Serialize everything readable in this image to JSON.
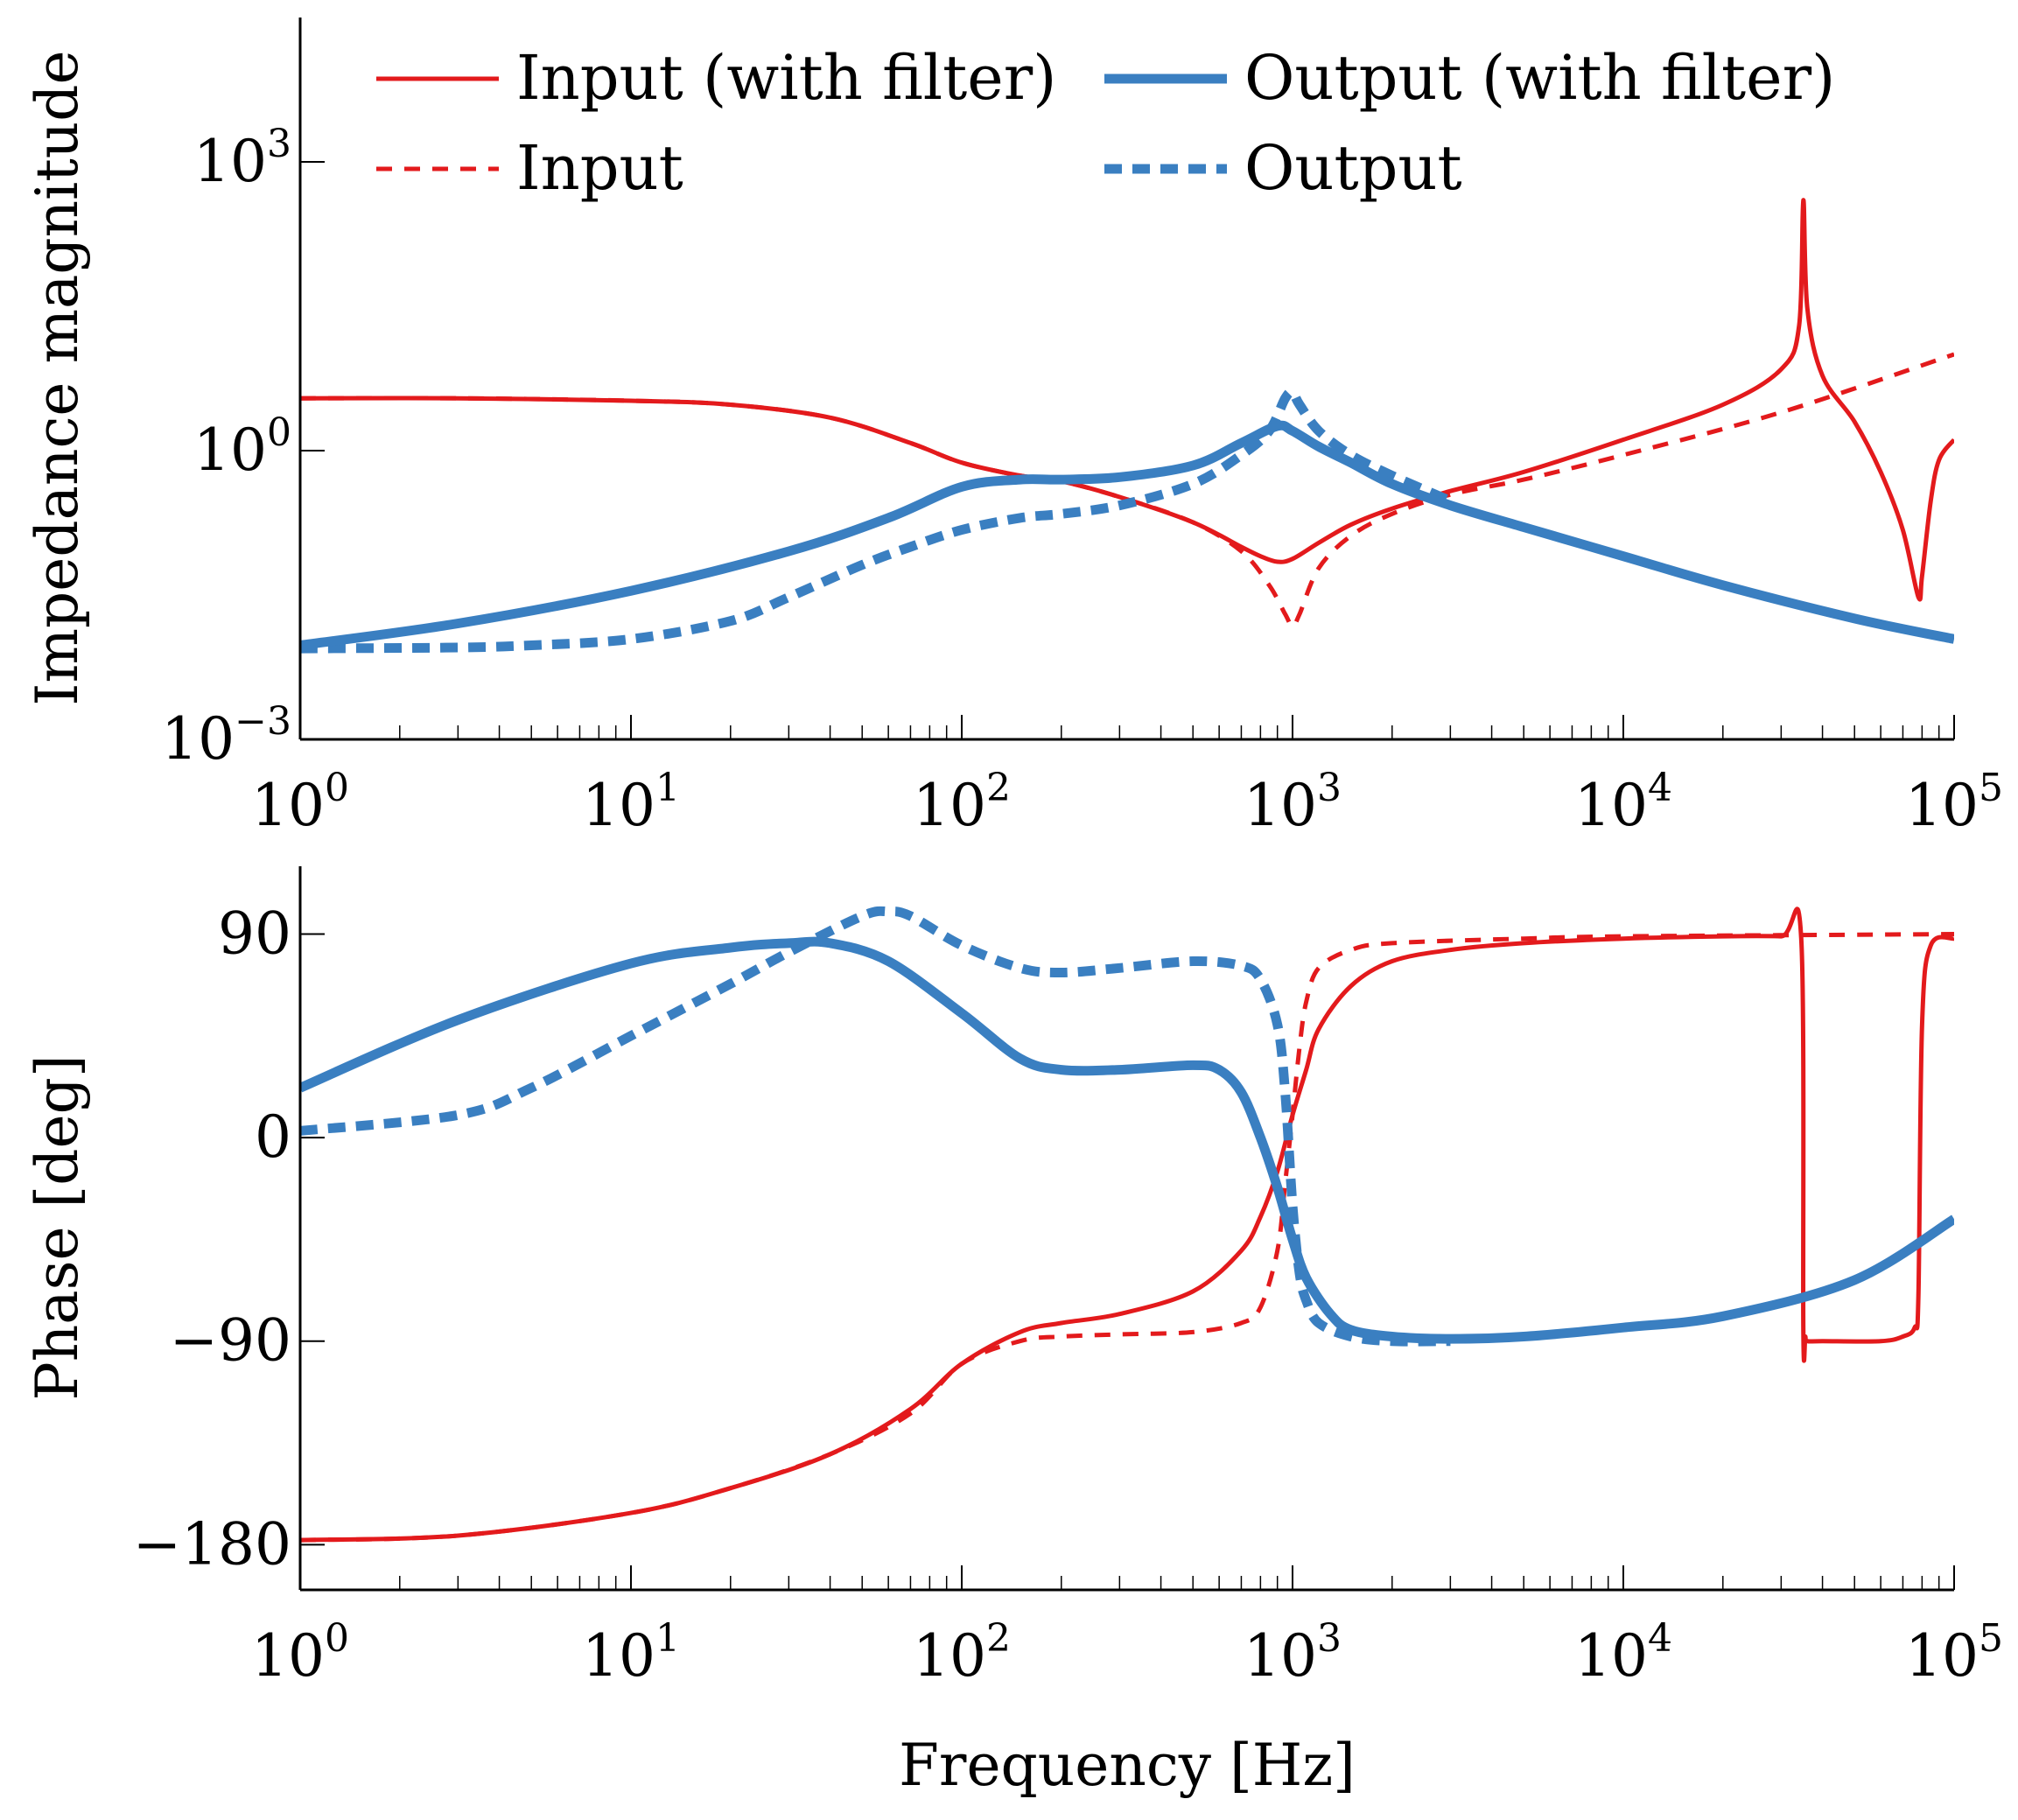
{
  "colors": {
    "input": "#e31a1c",
    "output": "#3a7fc1",
    "axis": "#000000"
  },
  "xlabel": "Frequency [Hz]",
  "legend": {
    "input_filter": "Input (with filter)",
    "output_filter": "Output (with filter)",
    "input": "Input",
    "output": "Output"
  },
  "chart_data": [
    {
      "id": "magnitude",
      "type": "line",
      "xscale": "log",
      "yscale": "log",
      "xlim": [
        1,
        100000
      ],
      "ylim": [
        0.001,
        31623
      ],
      "ylabel": "Impedance magnitude",
      "x_ticks": [
        {
          "base": "10",
          "exp": "0",
          "value": 1
        },
        {
          "base": "10",
          "exp": "1",
          "value": 10
        },
        {
          "base": "10",
          "exp": "2",
          "value": 100
        },
        {
          "base": "10",
          "exp": "3",
          "value": 1000
        },
        {
          "base": "10",
          "exp": "4",
          "value": 10000
        },
        {
          "base": "10",
          "exp": "5",
          "value": 100000
        }
      ],
      "y_ticks": [
        {
          "base": "10",
          "exp": "−3",
          "value": 0.001
        },
        {
          "base": "10",
          "exp": "0",
          "value": 1
        },
        {
          "base": "10",
          "exp": "3",
          "value": 1000
        }
      ],
      "series": [
        {
          "name": "Input (with filter)",
          "key": "input_filter",
          "x": [
            1,
            3,
            10,
            20,
            40,
            70,
            100,
            150,
            200,
            300,
            500,
            700,
            800,
            900,
            1000,
            1200,
            1500,
            2000,
            3000,
            5000,
            10000,
            20000,
            30000,
            34000,
            35000,
            36000,
            40000,
            50000,
            60000,
            70000,
            78000,
            80000,
            85000,
            90000,
            100000
          ],
          "y": [
            3.5,
            3.5,
            3.3,
            3.0,
            2.2,
            1.2,
            0.75,
            0.55,
            0.48,
            0.33,
            0.18,
            0.1,
            0.08,
            0.07,
            0.075,
            0.11,
            0.17,
            0.25,
            0.38,
            0.6,
            1.3,
            3.0,
            7.0,
            20,
            400,
            30,
            6,
            2.0,
            0.6,
            0.15,
            0.03,
            0.05,
            0.3,
            0.8,
            1.3
          ]
        },
        {
          "name": "Input",
          "key": "input",
          "x": [
            1,
            3,
            10,
            20,
            40,
            70,
            100,
            150,
            200,
            300,
            500,
            700,
            850,
            950,
            1000,
            1050,
            1200,
            1500,
            2000,
            3000,
            5000,
            10000,
            30000,
            100000
          ],
          "y": [
            3.5,
            3.5,
            3.3,
            3.0,
            2.2,
            1.2,
            0.75,
            0.55,
            0.48,
            0.33,
            0.18,
            0.09,
            0.04,
            0.02,
            0.015,
            0.02,
            0.06,
            0.13,
            0.22,
            0.35,
            0.5,
            0.9,
            2.5,
            10
          ]
        },
        {
          "name": "Output (with filter)",
          "key": "output_filter",
          "x": [
            1,
            3,
            10,
            30,
            60,
            100,
            150,
            200,
            300,
            500,
            700,
            900,
            1000,
            1200,
            1500,
            2000,
            3000,
            5000,
            10000,
            20000,
            50000,
            100000
          ],
          "y": [
            0.0095,
            0.016,
            0.035,
            0.09,
            0.2,
            0.42,
            0.5,
            0.5,
            0.53,
            0.7,
            1.2,
            1.8,
            1.6,
            1.1,
            0.75,
            0.45,
            0.27,
            0.16,
            0.08,
            0.04,
            0.018,
            0.011
          ]
        },
        {
          "name": "Output",
          "key": "output",
          "x": [
            1,
            3,
            5,
            10,
            20,
            30,
            50,
            70,
            100,
            150,
            200,
            300,
            500,
            700,
            850,
            950,
            1000,
            1050,
            1200,
            1500,
            2000,
            3000
          ],
          "y": [
            0.0088,
            0.009,
            0.0095,
            0.011,
            0.017,
            0.03,
            0.065,
            0.1,
            0.15,
            0.2,
            0.22,
            0.27,
            0.45,
            0.9,
            1.6,
            3.5,
            4.0,
            3.0,
            1.6,
            0.9,
            0.55,
            0.3
          ]
        }
      ]
    },
    {
      "id": "phase",
      "type": "line",
      "xscale": "log",
      "yscale": "linear",
      "xlim": [
        1,
        100000
      ],
      "ylim": [
        -200,
        120
      ],
      "ylabel": "Phase [deg]",
      "x_ticks": [
        {
          "base": "10",
          "exp": "0",
          "value": 1
        },
        {
          "base": "10",
          "exp": "1",
          "value": 10
        },
        {
          "base": "10",
          "exp": "2",
          "value": 100
        },
        {
          "base": "10",
          "exp": "3",
          "value": 1000
        },
        {
          "base": "10",
          "exp": "4",
          "value": 10000
        },
        {
          "base": "10",
          "exp": "5",
          "value": 100000
        }
      ],
      "y_ticks": [
        {
          "label": "90",
          "value": 90
        },
        {
          "label": "0",
          "value": 0
        },
        {
          "label": "−90",
          "value": -90
        },
        {
          "label": "−180",
          "value": -180
        }
      ],
      "series": [
        {
          "name": "Input (with filter)",
          "key": "input_filter",
          "x": [
            1,
            3,
            10,
            20,
            40,
            70,
            100,
            150,
            200,
            300,
            500,
            700,
            800,
            900,
            1000,
            1100,
            1200,
            1500,
            2000,
            3000,
            5000,
            10000,
            20000,
            30000,
            34500,
            35000,
            35500,
            36000,
            40000,
            60000,
            70000,
            76000,
            78000,
            80000,
            85000,
            100000
          ],
          "y": [
            -178,
            -176,
            -166,
            -155,
            -140,
            -120,
            -100,
            -86,
            -82,
            -78,
            -68,
            -50,
            -35,
            -15,
            10,
            30,
            48,
            67,
            78,
            83,
            86,
            88,
            89,
            89,
            88,
            -85,
            -88,
            -90,
            -90,
            -90,
            -88,
            -84,
            -70,
            50,
            85,
            88
          ]
        },
        {
          "name": "Input",
          "key": "input",
          "x": [
            1,
            3,
            10,
            20,
            40,
            70,
            100,
            150,
            200,
            300,
            500,
            700,
            800,
            900,
            950,
            1000,
            1050,
            1100,
            1200,
            1500,
            2000,
            5000,
            10000,
            100000
          ],
          "y": [
            -178,
            -176,
            -166,
            -155,
            -140,
            -122,
            -100,
            -90,
            -88,
            -87,
            -86,
            -82,
            -75,
            -50,
            -20,
            10,
            40,
            60,
            75,
            83,
            86,
            88,
            89,
            90
          ]
        },
        {
          "name": "Output (with filter)",
          "key": "output_filter",
          "x": [
            1,
            3,
            10,
            20,
            30,
            40,
            60,
            100,
            150,
            200,
            300,
            500,
            600,
            700,
            800,
            900,
            1000,
            1100,
            1300,
            1500,
            2000,
            3000,
            5000,
            10000,
            20000,
            50000,
            100000
          ],
          "y": [
            22,
            52,
            77,
            84,
            86,
            86,
            78,
            55,
            35,
            30,
            30,
            32,
            30,
            20,
            0,
            -22,
            -45,
            -62,
            -78,
            -85,
            -88,
            -89,
            -88,
            -84,
            -79,
            -63,
            -36
          ]
        },
        {
          "name": "Output",
          "key": "output",
          "x": [
            1,
            3,
            5,
            10,
            20,
            30,
            50,
            60,
            70,
            100,
            150,
            200,
            300,
            500,
            700,
            800,
            900,
            950,
            1000,
            1050,
            1100,
            1200,
            1500,
            2000,
            3000
          ],
          "y": [
            3,
            10,
            22,
            45,
            68,
            82,
            98,
            100,
            98,
            85,
            75,
            73,
            75,
            78,
            76,
            70,
            50,
            20,
            -30,
            -60,
            -72,
            -82,
            -88,
            -90,
            -90
          ]
        }
      ]
    }
  ]
}
